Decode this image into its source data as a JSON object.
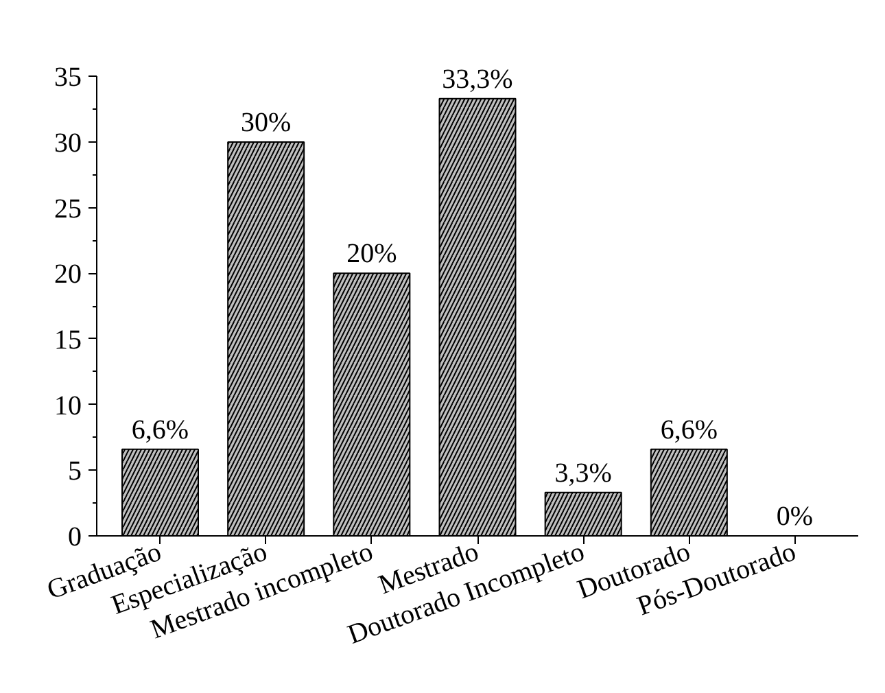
{
  "chart_data": {
    "type": "bar",
    "categories": [
      "Graduação",
      "Especialização",
      "Mestrado incompleto",
      "Mestrado",
      "Doutorado Incompleto",
      "Doutorado",
      "Pós-Doutorado"
    ],
    "values": [
      6.6,
      30,
      20,
      33.3,
      3.3,
      6.6,
      0
    ],
    "value_labels": [
      "6,6%",
      "30%",
      "20%",
      "33,3%",
      "3,3%",
      "6,6%",
      "0%"
    ],
    "color": "#bfbfbf",
    "ylim": [
      0,
      35
    ],
    "yticks": [
      0,
      5,
      10,
      15,
      20,
      25,
      30,
      35
    ],
    "grid": false
  }
}
